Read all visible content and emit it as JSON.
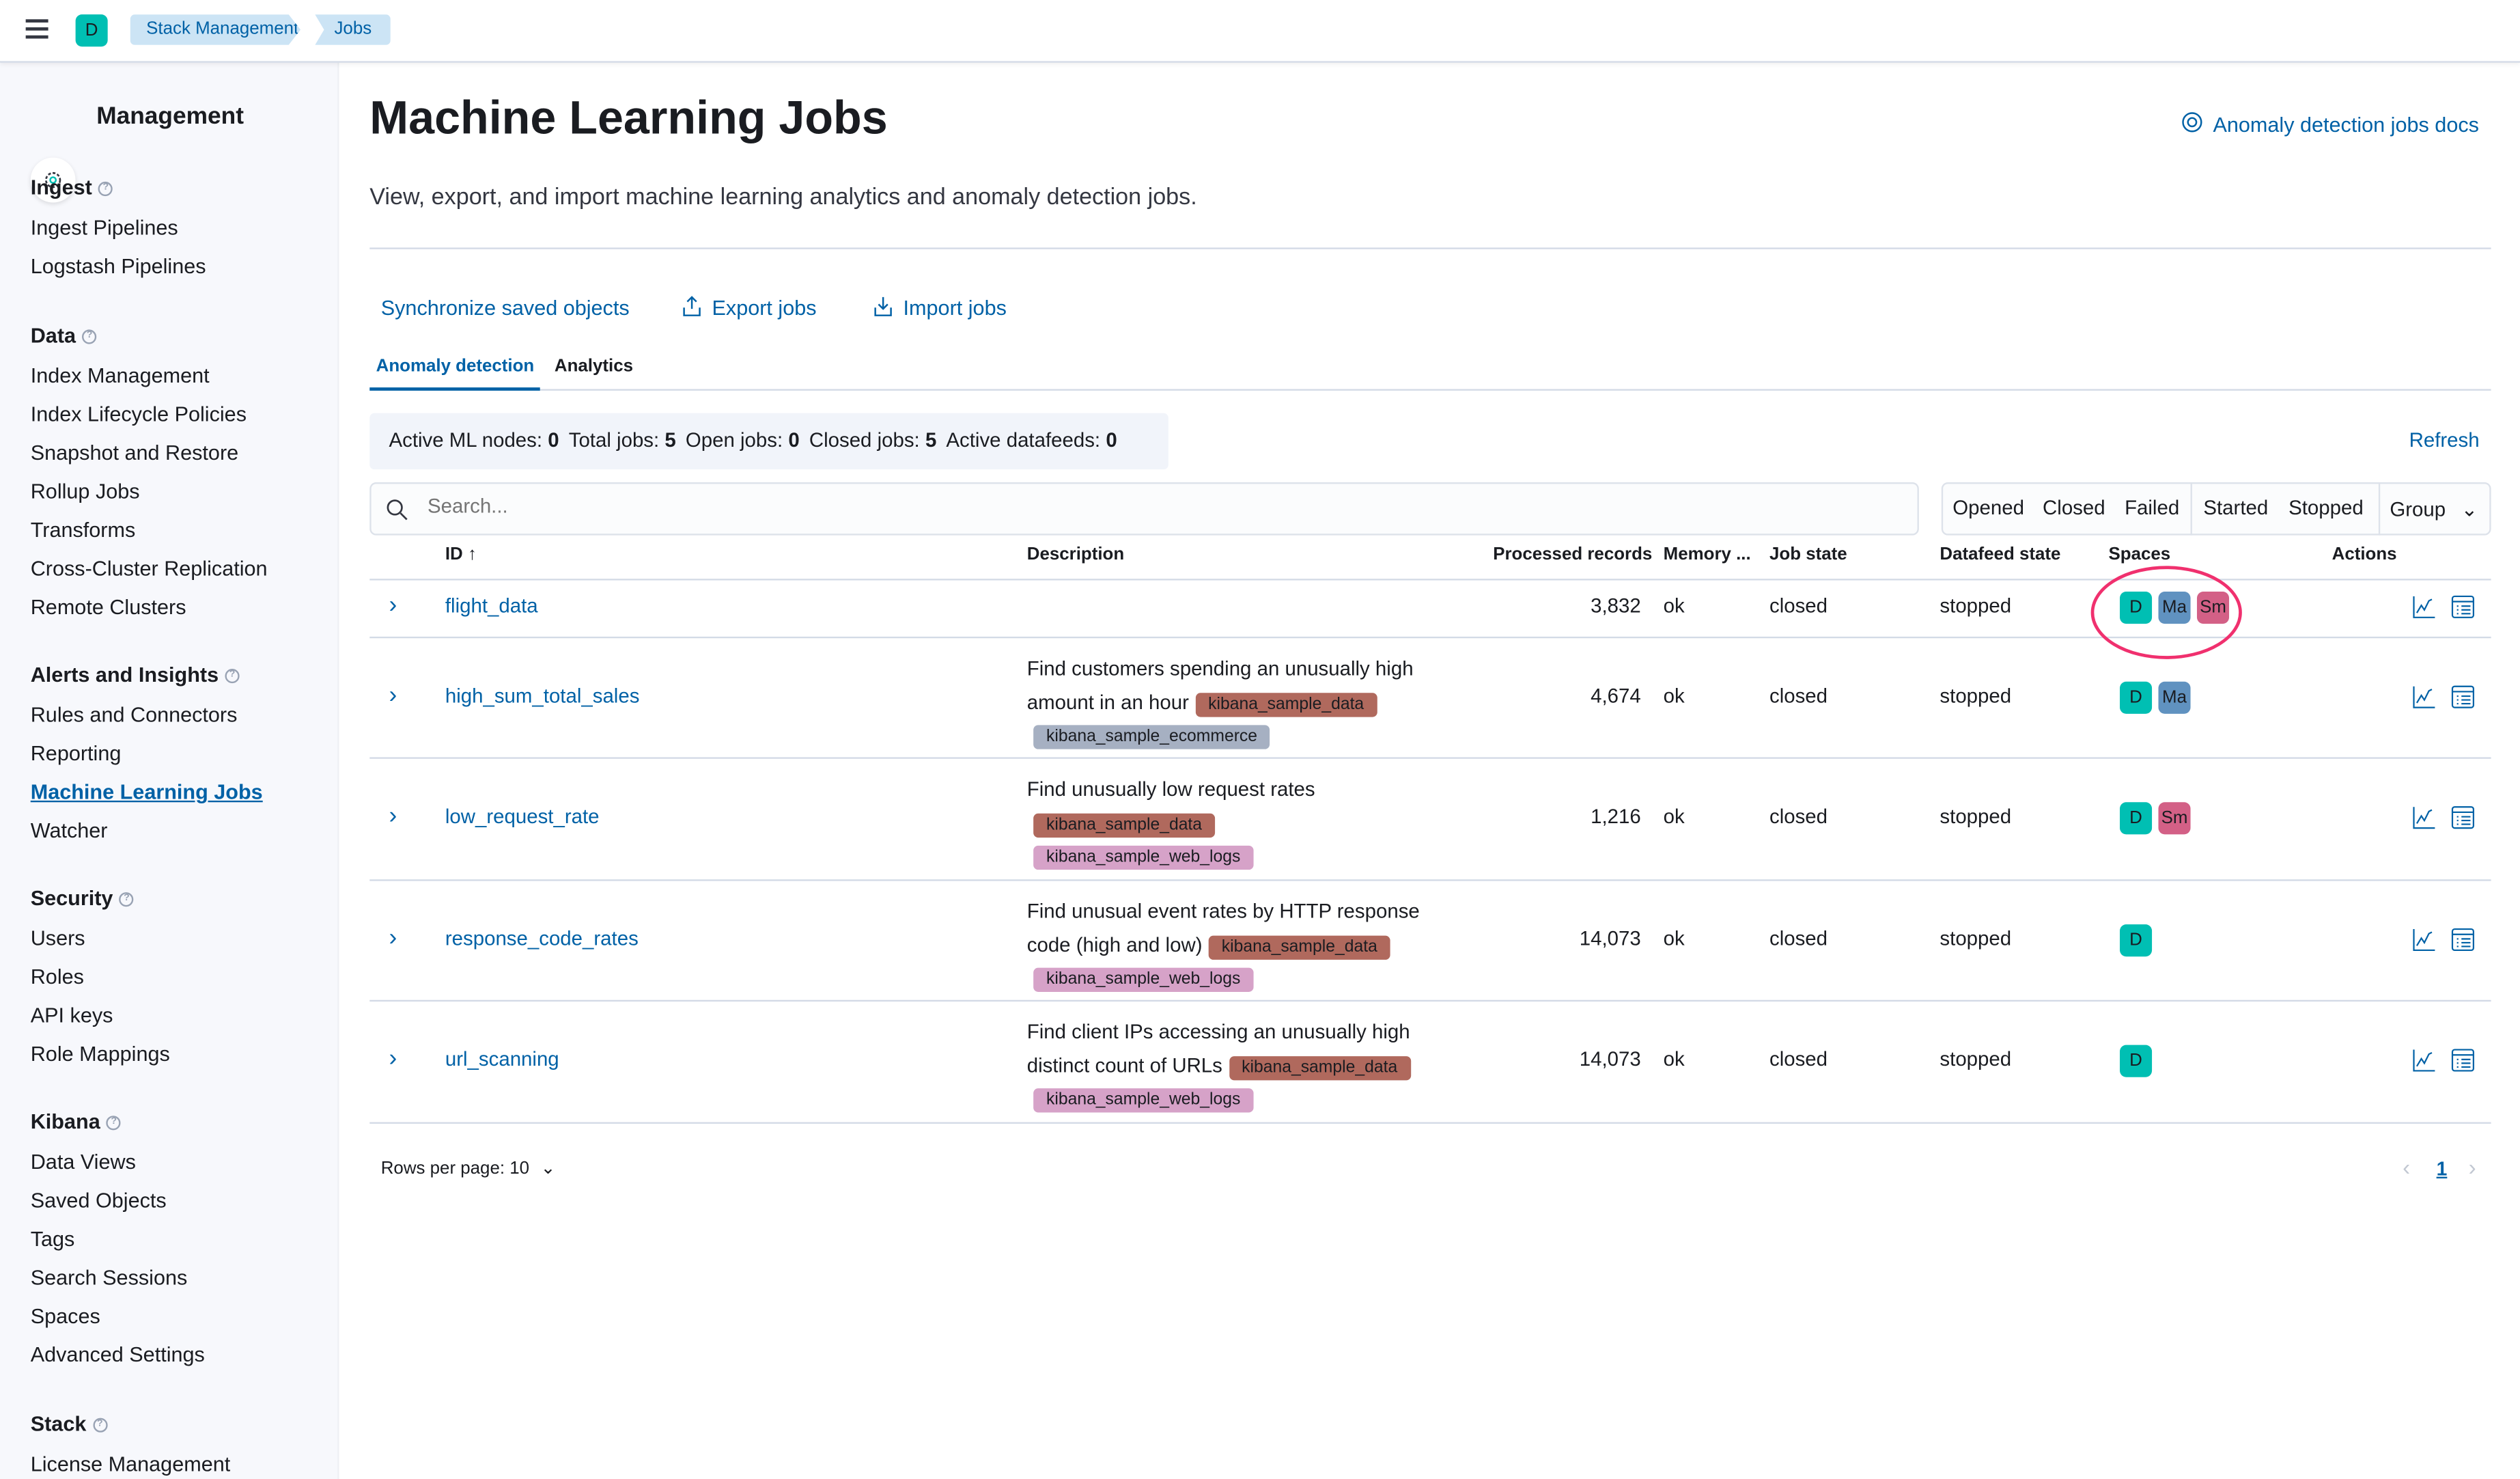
{
  "header": {
    "space_initial": "D",
    "breadcrumbs": [
      "Stack Management",
      "Jobs"
    ]
  },
  "sidebar": {
    "title": "Management",
    "sections": [
      {
        "label": "Ingest",
        "items": [
          "Ingest Pipelines",
          "Logstash Pipelines"
        ]
      },
      {
        "label": "Data",
        "items": [
          "Index Management",
          "Index Lifecycle Policies",
          "Snapshot and Restore",
          "Rollup Jobs",
          "Transforms",
          "Cross-Cluster Replication",
          "Remote Clusters"
        ]
      },
      {
        "label": "Alerts and Insights",
        "items": [
          "Rules and Connectors",
          "Reporting",
          "Machine Learning Jobs",
          "Watcher"
        ]
      },
      {
        "label": "Security",
        "items": [
          "Users",
          "Roles",
          "API keys",
          "Role Mappings"
        ]
      },
      {
        "label": "Kibana",
        "items": [
          "Data Views",
          "Saved Objects",
          "Tags",
          "Search Sessions",
          "Spaces",
          "Advanced Settings"
        ]
      },
      {
        "label": "Stack",
        "items": [
          "License Management"
        ]
      }
    ],
    "active_item": "Machine Learning Jobs"
  },
  "page": {
    "title": "Machine Learning Jobs",
    "subtitle": "View, export, and import machine learning analytics and anomaly detection jobs.",
    "docs_link": "Anomaly detection jobs docs"
  },
  "actions": {
    "sync": "Synchronize saved objects",
    "export": "Export jobs",
    "import": "Import jobs"
  },
  "tabs": [
    {
      "label": "Anomaly detection",
      "active": true
    },
    {
      "label": "Analytics",
      "active": false
    }
  ],
  "stats": [
    {
      "label": "Active ML nodes:",
      "value": "0"
    },
    {
      "label": "Total jobs:",
      "value": "5"
    },
    {
      "label": "Open jobs:",
      "value": "0"
    },
    {
      "label": "Closed jobs:",
      "value": "5"
    },
    {
      "label": "Active datafeeds:",
      "value": "0"
    }
  ],
  "refresh": "Refresh",
  "search": {
    "placeholder": "Search...",
    "value": ""
  },
  "filters": {
    "state": [
      "Opened",
      "Closed",
      "Failed"
    ],
    "datafeed": [
      "Started",
      "Stopped"
    ],
    "group": "Group"
  },
  "table": {
    "columns": [
      "ID",
      "Description",
      "Processed records",
      "Memory ...",
      "Job state",
      "Datafeed state",
      "Spaces",
      "Actions"
    ],
    "rows": [
      {
        "id": "flight_data",
        "desc": [],
        "tags": [],
        "records": "3,832",
        "memory": "ok",
        "job_state": "closed",
        "datafeed": "stopped",
        "spaces": [
          "D",
          "Ma",
          "Sm"
        ]
      },
      {
        "id": "high_sum_total_sales",
        "desc": [
          "Find customers spending an unusually high",
          "amount in an hour"
        ],
        "tags": [
          "kibana_sample_data",
          "kibana_sample_ecommerce"
        ],
        "records": "4,674",
        "memory": "ok",
        "job_state": "closed",
        "datafeed": "stopped",
        "spaces": [
          "D",
          "Ma"
        ]
      },
      {
        "id": "low_request_rate",
        "desc": [
          "Find unusually low request rates"
        ],
        "tags": [
          "kibana_sample_data",
          "kibana_sample_web_logs"
        ],
        "records": "1,216",
        "memory": "ok",
        "job_state": "closed",
        "datafeed": "stopped",
        "spaces": [
          "D",
          "Sm"
        ]
      },
      {
        "id": "response_code_rates",
        "desc": [
          "Find unusual event rates by HTTP response",
          "code (high and low)"
        ],
        "tags": [
          "kibana_sample_data",
          "kibana_sample_web_logs"
        ],
        "records": "14,073",
        "memory": "ok",
        "job_state": "closed",
        "datafeed": "stopped",
        "spaces": [
          "D"
        ]
      },
      {
        "id": "url_scanning",
        "desc": [
          "Find client IPs accessing an unusually high",
          "distinct count of URLs"
        ],
        "tags": [
          "kibana_sample_data",
          "kibana_sample_web_logs"
        ],
        "records": "14,073",
        "memory": "ok",
        "job_state": "closed",
        "datafeed": "stopped",
        "spaces": [
          "D"
        ]
      }
    ]
  },
  "pagination": {
    "rows_per_page": "Rows per page: 10",
    "current_page": "1"
  },
  "colors": {
    "accent": "#0061a6",
    "space_D": "#00bfb3",
    "space_Ma": "#6092c0",
    "space_Sm": "#d36086",
    "tag_kibana_sample_data": "#b0695d",
    "tag_kibana_sample_ecommerce": "#a6b0c2",
    "tag_kibana_sample_web_logs": "#d6a2c8",
    "highlight_circle": "#f0306e"
  }
}
